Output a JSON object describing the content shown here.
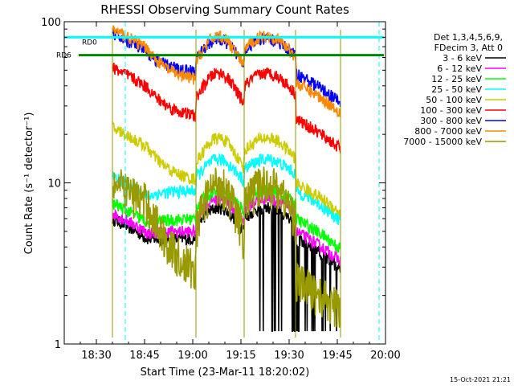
{
  "chart_data": {
    "type": "line",
    "title": "RHESSI Observing Summary Count Rates",
    "xlabel": "Start Time (23-Mar-11 18:20:02)",
    "ylabel": "Count Rate (s⁻¹ detector⁻¹)",
    "yscale": "log",
    "ylim": [
      1,
      100
    ],
    "xlim_minutes_from_1820": [
      0,
      100
    ],
    "xticks": [
      "18:30",
      "18:45",
      "19:00",
      "19:15",
      "19:30",
      "19:45",
      "20:00"
    ],
    "xtick_minutes": [
      10,
      25,
      40,
      55,
      70,
      85,
      100
    ],
    "yticks": [
      "1",
      "10",
      "100"
    ],
    "legend_header": [
      "Det 1,3,4,5,6,9,",
      "FDecim 3, Att 0"
    ],
    "legend_position": "right",
    "timestamp": "15-Oct-2021 21:21",
    "annotations": {
      "rd0": "RD0",
      "rd6": "RD6"
    },
    "gaps_minutes": [
      [
        0,
        15
      ],
      [
        86,
        100
      ]
    ],
    "transitions_minutes": [
      15,
      41,
      56,
      72,
      86
    ],
    "dashed_lines_minutes": [
      19,
      98
    ],
    "series": [
      {
        "name": "3 - 6 keV",
        "color": "#000000",
        "base": 6.0,
        "peak": 7.0,
        "dip": 4.5
      },
      {
        "name": "6 - 12 keV",
        "color": "#ff00ff",
        "base": 6.5,
        "peak": 8.0,
        "dip": 5.0
      },
      {
        "name": "12 - 25 keV",
        "color": "#00ff00",
        "base": 7.5,
        "peak": 9.0,
        "dip": 6.0
      },
      {
        "name": "25 - 50 keV",
        "color": "#00ffff",
        "base": 11.0,
        "peak": 14.0,
        "dip": 9.0
      },
      {
        "name": "50 - 100 keV",
        "color": "#cccc00",
        "base": 22.0,
        "peak": 19.0,
        "dip": 10.0
      },
      {
        "name": "100 - 300 keV",
        "color": "#ff0000",
        "base": 52.0,
        "peak": 48.0,
        "dip": 25.0
      },
      {
        "name": "300 - 800 keV",
        "color": "#0000ff",
        "base": 85.0,
        "peak": 78.0,
        "dip": 48.0
      },
      {
        "name": "800 - 7000 keV",
        "color": "#ff8800",
        "base": 90.0,
        "peak": 82.0,
        "dip": 42.0
      },
      {
        "name": "7000 - 15000 keV",
        "color": "#999900",
        "base": 10.0,
        "peak": 10.0,
        "dip": 2.5
      }
    ]
  }
}
